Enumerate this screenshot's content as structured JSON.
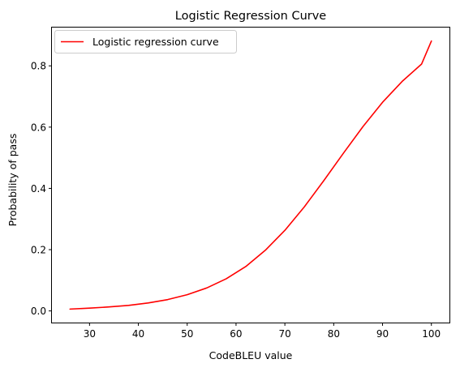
{
  "chart_data": {
    "type": "line",
    "title": "Logistic Regression Curve",
    "xlabel": "CodeBLEU value",
    "ylabel": "Probability of pass",
    "xlim": [
      22.3,
      103.7
    ],
    "ylim": [
      -0.038,
      0.925
    ],
    "x_ticks": [
      30,
      40,
      50,
      60,
      70,
      80,
      90,
      100
    ],
    "x_tick_labels": [
      "30",
      "40",
      "50",
      "60",
      "70",
      "80",
      "90",
      "100"
    ],
    "y_ticks": [
      0.0,
      0.2,
      0.4,
      0.6,
      0.8
    ],
    "y_tick_labels": [
      "0.0",
      "0.2",
      "0.4",
      "0.6",
      "0.8"
    ],
    "grid": false,
    "legend": {
      "location": "upper-left",
      "entries": [
        "Logistic regression curve"
      ]
    },
    "series": [
      {
        "name": "Logistic regression curve",
        "color": "#ff0000",
        "x": [
          26,
          30,
          34,
          38,
          42,
          46,
          50,
          54,
          58,
          62,
          66,
          70,
          74,
          78,
          82,
          86,
          90,
          94,
          98,
          100
        ],
        "y": [
          0.006,
          0.009,
          0.013,
          0.018,
          0.026,
          0.037,
          0.053,
          0.075,
          0.105,
          0.145,
          0.198,
          0.263,
          0.34,
          0.426,
          0.515,
          0.602,
          0.681,
          0.749,
          0.806,
          0.881
        ]
      }
    ]
  }
}
